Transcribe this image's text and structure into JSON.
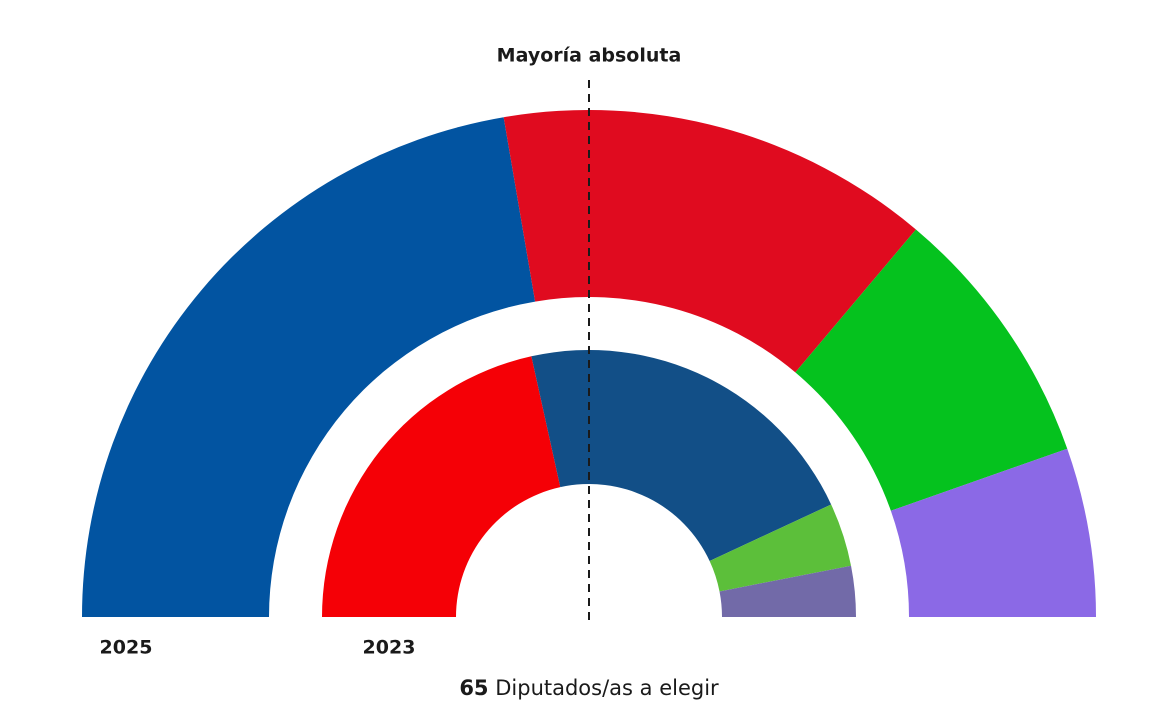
{
  "chart_data": {
    "type": "parliament",
    "annotation": "Mayoría absoluta",
    "total": 65,
    "subtitle": "Diputados/as a elegir",
    "series": [
      {
        "name": "2025",
        "values": [
          29,
          18,
          11,
          7
        ],
        "colors": [
          "#0254a1",
          "#e00b1f",
          "#05c21e",
          "#8b69e6"
        ]
      },
      {
        "name": "2023",
        "values": [
          28,
          28,
          5,
          4
        ],
        "colors": [
          "#f50006",
          "#124f87",
          "#5cbf3a",
          "#726aa8"
        ]
      }
    ]
  }
}
